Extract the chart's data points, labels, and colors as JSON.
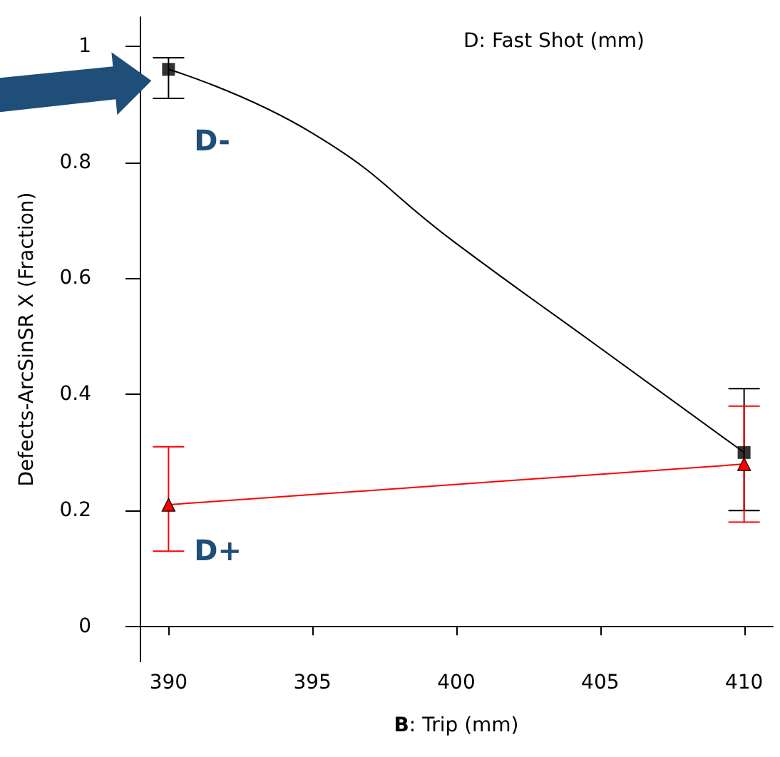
{
  "chart_data": {
    "type": "line",
    "legend_title": "D: Fast Shot (mm)",
    "xlabel": "B: Trip (mm)",
    "ylabel": "Defects-ArcSinSR X (Fraction)",
    "series": [
      {
        "name": "D-",
        "color": "#000000",
        "type": "scatter",
        "marker": "square",
        "x": [
          390,
          410
        ],
        "values": [
          0.96,
          0.3
        ],
        "errors": [
          [
            0.91,
            0.98
          ],
          [
            0.2,
            0.41
          ]
        ]
      },
      {
        "color": "#000000",
        "marker": "none",
        "x": [
          390,
          395,
          400,
          405,
          410
        ],
        "values": [
          0.96,
          0.85,
          0.66,
          0.48,
          0.3
        ]
      },
      {
        "name": "D+",
        "color": "#ff0000",
        "marker": "triangle",
        "x": [
          390,
          410
        ],
        "values": [
          0.21,
          0.28
        ],
        "errors": [
          [
            0.13,
            0.31
          ],
          [
            0.18,
            0.38
          ]
        ]
      }
    ],
    "xlim": [
      389,
      411
    ],
    "xticks": [
      390,
      395,
      400,
      405,
      410
    ],
    "ylim": [
      -0.06,
      1.05
    ],
    "yticks": [
      0,
      0.2,
      0.4,
      0.6,
      0.8,
      1
    ],
    "grid": false,
    "legend": false
  }
}
